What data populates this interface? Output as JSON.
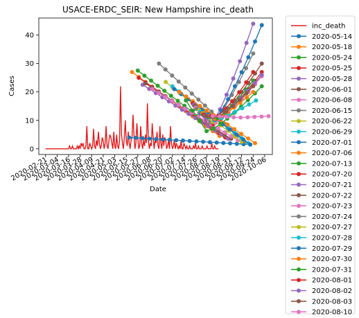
{
  "chart_data": {
    "type": "line",
    "title": "USACE-ERDC_SEIR: New Hampshire inc_death",
    "xlabel": "Date",
    "ylabel": "Cases",
    "ylim": [
      -2,
      46
    ],
    "xlim": [
      "2020-02-14",
      "2020-10-14"
    ],
    "y_ticks": [
      0,
      10,
      20,
      30,
      40
    ],
    "x_ticks": [
      "2020-02-21",
      "2020-03-04",
      "2020-03-16",
      "2020-03-28",
      "2020-04-09",
      "2020-04-21",
      "2020-05-03",
      "2020-05-15",
      "2020-05-27",
      "2020-06-08",
      "2020-06-20",
      "2020-07-02",
      "2020-07-14",
      "2020-07-26",
      "2020-08-07",
      "2020-08-19",
      "2020-08-31",
      "2020-09-12",
      "2020-09-24",
      "2020-10-06"
    ],
    "grid": false,
    "legend_position": "outside-right",
    "observed": {
      "name": "inc_death",
      "color": "#e41a1c",
      "start": "2020-02-21",
      "values": [
        0,
        0,
        0,
        0,
        0,
        0,
        0,
        0,
        0,
        0,
        0,
        0,
        0,
        0,
        0,
        0,
        0,
        0,
        0,
        0,
        0,
        0,
        0,
        0,
        0,
        1,
        0,
        0,
        1,
        0,
        0,
        0,
        0,
        1,
        0,
        1,
        0,
        2,
        1,
        2,
        0,
        0,
        1,
        8,
        0,
        0,
        2,
        1,
        0,
        1,
        7,
        1,
        0,
        3,
        1,
        6,
        2,
        0,
        1,
        4,
        3,
        0,
        2,
        8,
        1,
        0,
        3,
        5,
        4,
        2,
        0,
        6,
        1,
        0,
        5,
        1,
        0,
        3,
        22,
        5,
        2,
        0,
        4,
        10,
        3,
        1,
        6,
        2,
        0,
        3,
        4,
        12,
        5,
        0,
        2,
        9,
        4,
        0,
        1,
        8,
        2,
        0,
        3,
        1,
        5,
        2,
        16,
        3,
        0,
        2,
        1,
        9,
        4,
        0,
        3,
        2,
        6,
        1,
        0,
        8,
        2,
        0,
        5,
        1,
        4,
        3,
        0,
        1,
        3,
        0,
        8,
        2,
        0,
        1,
        3,
        0,
        2,
        1,
        0,
        1,
        0,
        3,
        0,
        0,
        2,
        1,
        0,
        1,
        0,
        0,
        1,
        0,
        0,
        0,
        1,
        0,
        2,
        0,
        0,
        1,
        0,
        0,
        0,
        1,
        0,
        0,
        0,
        0,
        1,
        0,
        0,
        0,
        0,
        2,
        0,
        0,
        1,
        0,
        0,
        0,
        0
      ]
    },
    "series": [
      {
        "name": "2020-05-14",
        "color": "#1f77b4",
        "start": "2020-05-18",
        "end": "2020-09-21",
        "y0": 4.0,
        "y1": 1.5
      },
      {
        "name": "2020-05-18",
        "color": "#ff7f0e",
        "start": "2020-05-21",
        "end": "2020-08-20",
        "y0": 27.0,
        "y1": 4.5
      },
      {
        "name": "2020-05-24",
        "color": "#2ca02c",
        "start": "2020-05-27",
        "end": "2020-08-25",
        "y0": 27.5,
        "y1": 4.5
      },
      {
        "name": "2020-05-25",
        "color": "#d62728",
        "start": "2020-05-28",
        "end": "2020-08-26",
        "y0": 25.0,
        "y1": 4.0
      },
      {
        "name": "2020-05-28",
        "color": "#9467bd",
        "start": "2020-06-01",
        "end": "2020-08-29",
        "y0": 22.5,
        "y1": 3.5
      },
      {
        "name": "2020-06-01",
        "color": "#8c564b",
        "start": "2020-06-04",
        "end": "2020-09-01",
        "y0": 23.0,
        "y1": 3.5
      },
      {
        "name": "2020-06-08",
        "color": "#e377c2",
        "start": "2020-06-11",
        "end": "2020-09-08",
        "y0": 21.0,
        "y1": 3.0
      },
      {
        "name": "2020-06-15",
        "color": "#7f7f7f",
        "start": "2020-06-18",
        "end": "2020-09-15",
        "y0": 30.0,
        "y1": 2.5
      },
      {
        "name": "2020-06-22",
        "color": "#bcbd22",
        "start": "2020-06-25",
        "end": "2020-09-12",
        "y0": 23.5,
        "y1": 2.5
      },
      {
        "name": "2020-06-29",
        "color": "#17becf",
        "start": "2020-07-02",
        "end": "2020-09-19",
        "y0": 22.0,
        "y1": 2.0
      },
      {
        "name": "2020-07-01",
        "color": "#1f77b4",
        "start": "2020-07-04",
        "end": "2020-09-21",
        "y0": 21.0,
        "y1": 1.5
      },
      {
        "name": "2020-07-06",
        "color": "#ff7f0e",
        "start": "2020-07-09",
        "end": "2020-09-26",
        "y0": 20.0,
        "y1": 2.0
      },
      {
        "name": "2020-07-13",
        "color": "#2ca02c",
        "start": "2020-07-16",
        "end": "2020-10-03",
        "y0": 17.0,
        "y1": 22.0,
        "vmin": 6.0,
        "vmin_date": "2020-08-07"
      },
      {
        "name": "2020-07-20",
        "color": "#d62728",
        "start": "2020-07-23",
        "end": "2020-10-03",
        "y0": 16.0,
        "y1": 27.0,
        "vmin": 8.0,
        "vmin_date": "2020-08-10"
      },
      {
        "name": "2020-07-21",
        "color": "#9467bd",
        "start": "2020-07-24",
        "end": "2020-09-24",
        "y0": 15.5,
        "y1": 44.0,
        "vmin": 8.0,
        "vmin_date": "2020-08-10"
      },
      {
        "name": "2020-07-22",
        "color": "#8c564b",
        "start": "2020-07-25",
        "end": "2020-10-03",
        "y0": 15.0,
        "y1": 30.0,
        "vmin": 8.5,
        "vmin_date": "2020-08-11"
      },
      {
        "name": "2020-07-23",
        "color": "#e377c2",
        "start": "2020-07-26",
        "end": "2020-10-03",
        "y0": 14.5,
        "y1": 25.5,
        "vmin": 8.5,
        "vmin_date": "2020-08-12"
      },
      {
        "name": "2020-07-24",
        "color": "#7f7f7f",
        "start": "2020-07-27",
        "end": "2020-09-24",
        "y0": 14.0,
        "y1": 33.5,
        "vmin": 9.0,
        "vmin_date": "2020-08-12"
      },
      {
        "name": "2020-07-27",
        "color": "#bcbd22",
        "start": "2020-07-30",
        "end": "2020-09-24",
        "y0": 13.5,
        "y1": 22.0,
        "vmin": 9.5,
        "vmin_date": "2020-08-13"
      },
      {
        "name": "2020-07-28",
        "color": "#17becf",
        "start": "2020-07-31",
        "end": "2020-09-27",
        "y0": 13.0,
        "y1": 17.0,
        "vmin": 10.0,
        "vmin_date": "2020-08-14"
      },
      {
        "name": "2020-07-29",
        "color": "#1f77b4",
        "start": "2020-08-01",
        "end": "2020-10-03",
        "y0": 12.5,
        "y1": 43.5,
        "vmin": 10.0,
        "vmin_date": "2020-08-14"
      },
      {
        "name": "2020-07-30",
        "color": "#ff7f0e",
        "start": "2020-08-02",
        "end": "2020-09-24",
        "y0": 12.5,
        "y1": 20.0,
        "vmin": 10.5,
        "vmin_date": "2020-08-15"
      },
      {
        "name": "2020-07-31",
        "color": "#2ca02c",
        "start": "2020-08-03",
        "end": "2020-09-24",
        "y0": 12.0,
        "y1": 24.0,
        "vmin": 10.5,
        "vmin_date": "2020-08-16"
      },
      {
        "name": "2020-08-01",
        "color": "#d62728",
        "start": "2020-08-04",
        "end": "2020-09-24",
        "y0": 12.0,
        "y1": 27.0,
        "vmin": 11.0,
        "vmin_date": "2020-08-16"
      },
      {
        "name": "2020-08-02",
        "color": "#9467bd",
        "start": "2020-08-05",
        "end": "2020-10-03",
        "y0": 11.5,
        "y1": 26.0,
        "vmin": 11.0,
        "vmin_date": "2020-08-17"
      },
      {
        "name": "2020-08-03",
        "color": "#8c564b",
        "start": "2020-08-06",
        "end": "2020-09-24",
        "y0": 11.5,
        "y1": 22.0,
        "vmin": 11.0,
        "vmin_date": "2020-08-17"
      },
      {
        "name": "2020-08-10",
        "color": "#e377c2",
        "start": "2020-08-13",
        "end": "2020-10-10",
        "y0": 11.5,
        "y1": 11.5,
        "vmin": 11.0,
        "vmin_date": "2020-09-10"
      }
    ]
  }
}
